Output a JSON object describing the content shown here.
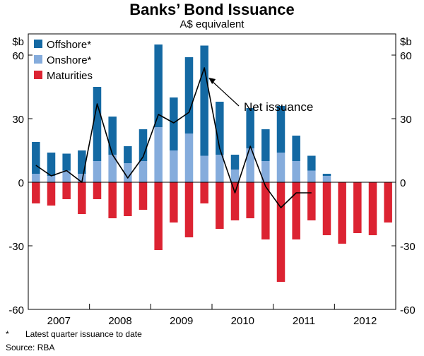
{
  "colors": {
    "offshore": "#1469a3",
    "onshore": "#85acdc",
    "maturities": "#dc2332",
    "net": "#000000"
  },
  "chart_data": {
    "type": "bar",
    "title": "Banks’ Bond Issuance",
    "subtitle": "A$ equivalent",
    "ylabel_left": "$b",
    "ylabel_right": "$b",
    "ylim": [
      -60,
      70
    ],
    "yticks": [
      60,
      30,
      0,
      -30,
      -60
    ],
    "ytick_labels": [
      "60",
      "30",
      "0",
      "-30",
      "-60"
    ],
    "years": [
      "2007",
      "2008",
      "2009",
      "2010",
      "2011",
      "2012"
    ],
    "quarters_per_year": 4,
    "stacked": true,
    "legend_position": "top-left",
    "series": [
      {
        "name": "Offshore*",
        "key": "offshore",
        "values": [
          15,
          11,
          8,
          11,
          35,
          18,
          8,
          15,
          39,
          25,
          36,
          52,
          25,
          7,
          19,
          15,
          22,
          12,
          7,
          1,
          null,
          null,
          null,
          null
        ]
      },
      {
        "name": "Onshore*",
        "key": "onshore",
        "values": [
          4,
          3,
          5.5,
          4,
          10,
          13,
          9,
          10,
          26,
          15,
          23,
          12.5,
          13,
          6,
          16,
          10,
          14,
          10,
          5.5,
          3,
          null,
          null,
          null,
          null
        ]
      },
      {
        "name": "Maturities",
        "key": "maturities",
        "values": [
          -10,
          -11,
          -8,
          -15,
          -8,
          -17,
          -16,
          -13,
          -32,
          -19,
          -26,
          -10,
          -22,
          -18,
          -17,
          -27,
          -47,
          -27,
          -18,
          -25,
          -29,
          -24,
          -25,
          -19
        ]
      },
      {
        "name": "Net issuance",
        "key": "net",
        "type": "line",
        "values": [
          8,
          3,
          5.5,
          0,
          37,
          13,
          2,
          12,
          32,
          28,
          33,
          54,
          16,
          -5,
          17,
          -2,
          -12,
          -5,
          -5,
          null,
          null,
          null,
          null,
          null
        ]
      }
    ],
    "annotations": [
      {
        "text": "Net issuance"
      }
    ]
  },
  "footnote": {
    "marker": "*",
    "text": "Latest quarter issuance to date"
  },
  "source": "Source: RBA"
}
